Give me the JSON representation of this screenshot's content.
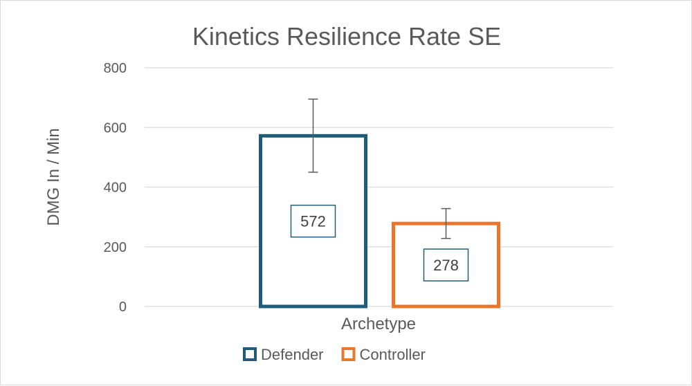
{
  "chart_data": {
    "type": "bar",
    "title": "Kinetics Resilience Rate SE",
    "xlabel": "Archetype",
    "ylabel": "DMG In / Min",
    "categories": [
      "Archetype"
    ],
    "ylim": [
      0,
      800
    ],
    "yticks": [
      0,
      200,
      400,
      600,
      800
    ],
    "grid": true,
    "legend_position": "bottom",
    "series": [
      {
        "name": "Defender",
        "values": [
          572
        ],
        "error_low": [
          450
        ],
        "error_high": [
          695
        ],
        "color": "#1f5c7a"
      },
      {
        "name": "Controller",
        "values": [
          278
        ],
        "error_low": [
          228
        ],
        "error_high": [
          328
        ],
        "color": "#e8772e"
      }
    ],
    "data_label_border_color": "#1f5c7a"
  }
}
